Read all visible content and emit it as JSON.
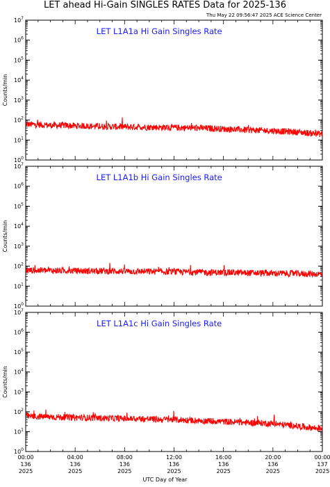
{
  "title": "LET ahead Hi-Gain SINGLES RATES Data for 2025-136",
  "timestamp": "Thu May 22 09:56:47 2025 ACE Science Center",
  "xlabel": "UTC Day of Year",
  "colors": {
    "trace": "#ff0000",
    "panel_title": "#1a1aff",
    "axes": "#000000"
  },
  "x_ticks": [
    {
      "hour": 0,
      "time": "00:00",
      "doy": "136",
      "year": "2025"
    },
    {
      "hour": 4,
      "time": "04:00",
      "doy": "136",
      "year": "2025"
    },
    {
      "hour": 8,
      "time": "08:00",
      "doy": "136",
      "year": "2025"
    },
    {
      "hour": 12,
      "time": "12:00",
      "doy": "136",
      "year": "2025"
    },
    {
      "hour": 16,
      "time": "16:00",
      "doy": "136",
      "year": "2025"
    },
    {
      "hour": 20,
      "time": "20:00",
      "doy": "136",
      "year": "2025"
    },
    {
      "hour": 24,
      "time": "00:00",
      "doy": "137",
      "year": "2025"
    }
  ],
  "chart_data": [
    {
      "type": "line",
      "title": "LET L1A1a Hi Gain Singles Rate",
      "ylabel": "Counts/min",
      "yscale": "log",
      "ylim": [
        1,
        10000000
      ],
      "xlim": [
        0,
        24
      ],
      "series": [
        {
          "x": [
            0,
            1,
            2,
            3,
            4,
            5,
            6,
            7,
            8,
            9,
            10,
            11,
            12,
            13,
            14,
            15,
            16,
            17,
            18,
            19,
            20,
            21,
            22,
            23,
            24
          ],
          "values": [
            62,
            58,
            55,
            54,
            52,
            50,
            48,
            47,
            46,
            45,
            44,
            43,
            42,
            41,
            40,
            38,
            36,
            34,
            32,
            30,
            29,
            27,
            25,
            22,
            20
          ]
        }
      ]
    },
    {
      "type": "line",
      "title": "LET L1A1b Hi Gain Singles Rate",
      "ylabel": "Counts/min",
      "yscale": "log",
      "ylim": [
        1,
        10000000
      ],
      "xlim": [
        0,
        24
      ],
      "series": [
        {
          "x": [
            0,
            1,
            2,
            3,
            4,
            5,
            6,
            7,
            8,
            9,
            10,
            11,
            12,
            13,
            14,
            15,
            16,
            17,
            18,
            19,
            20,
            21,
            22,
            23,
            24
          ],
          "values": [
            62,
            61,
            60,
            59,
            58,
            57,
            57,
            56,
            55,
            55,
            54,
            53,
            52,
            51,
            50,
            49,
            48,
            47,
            46,
            45,
            44,
            43,
            42,
            41,
            40
          ]
        }
      ]
    },
    {
      "type": "line",
      "title": "LET L1A1c Hi Gain Singles Rate",
      "ylabel": "Counts/min",
      "yscale": "log",
      "ylim": [
        1,
        10000000
      ],
      "xlim": [
        0,
        24
      ],
      "series": [
        {
          "x": [
            0,
            1,
            2,
            3,
            4,
            5,
            6,
            7,
            8,
            9,
            10,
            11,
            12,
            13,
            14,
            15,
            16,
            17,
            18,
            19,
            20,
            21,
            22,
            23,
            24
          ],
          "values": [
            60,
            57,
            55,
            53,
            51,
            50,
            48,
            47,
            45,
            44,
            43,
            41,
            40,
            38,
            36,
            34,
            32,
            30,
            28,
            27,
            25,
            22,
            19,
            16,
            14
          ]
        }
      ]
    }
  ]
}
